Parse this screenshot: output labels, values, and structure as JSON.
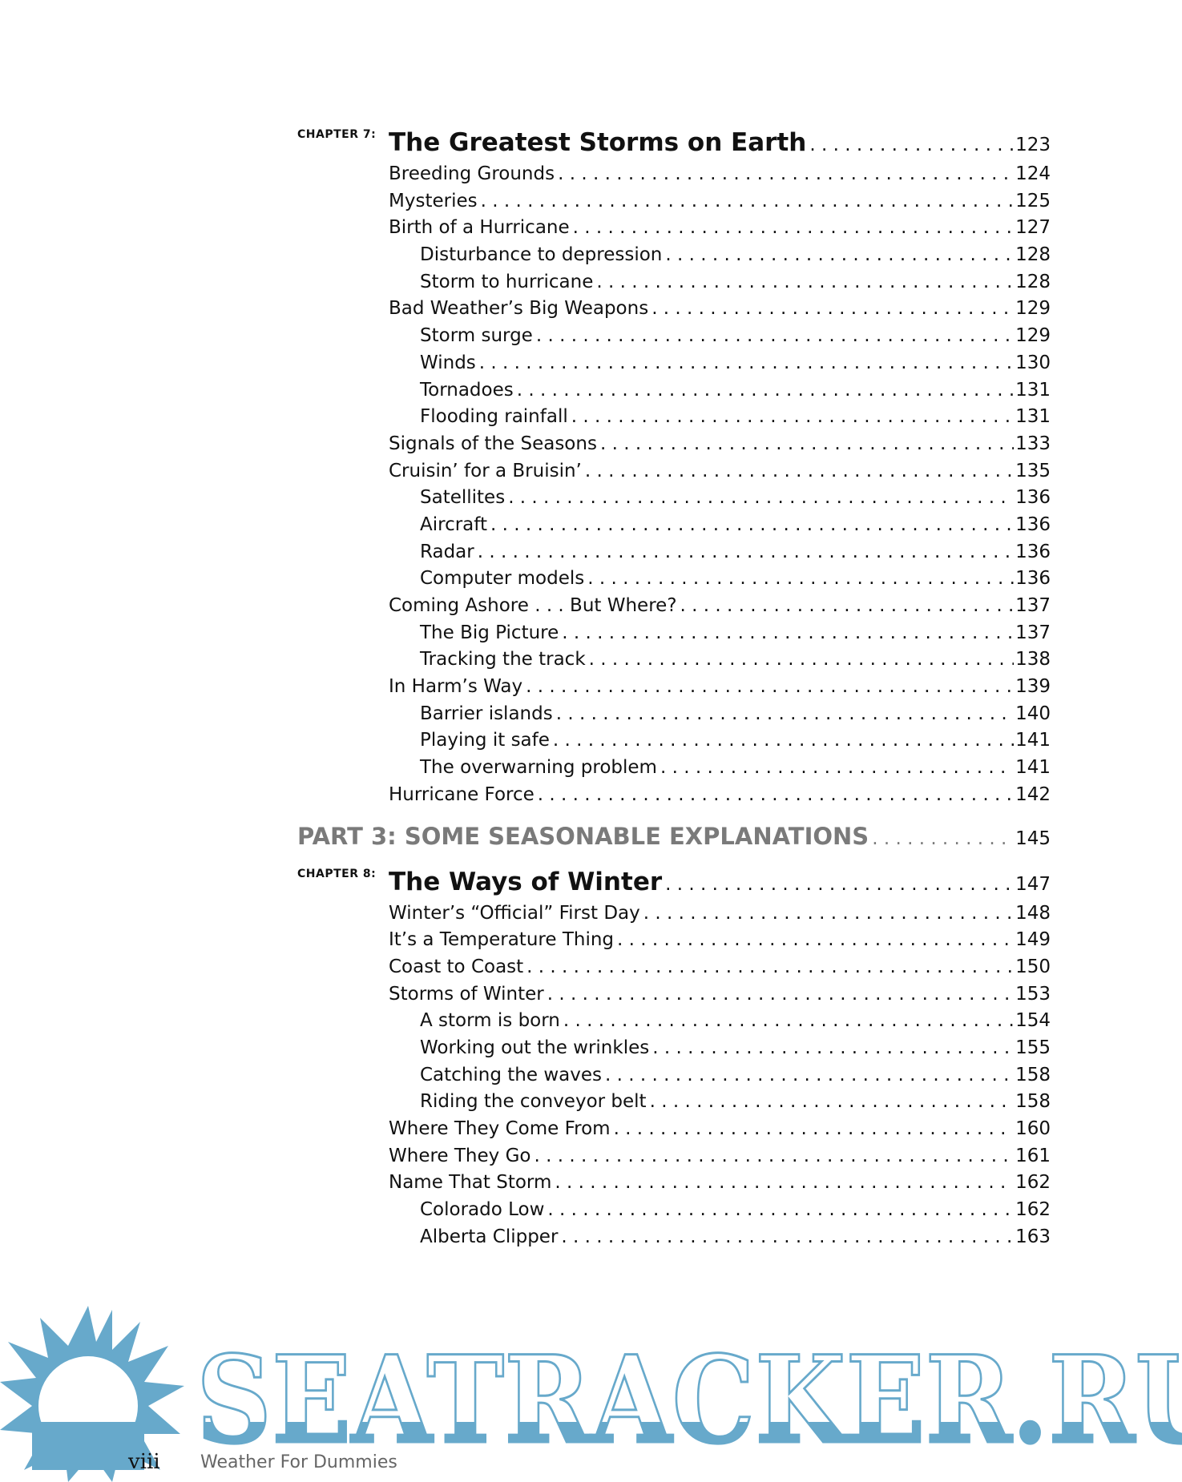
{
  "chapters_before": {
    "label": "CHAPTER 7:",
    "title": "The Greatest Storms on Earth",
    "page": "123",
    "entries": [
      {
        "text": "Breeding Grounds",
        "page": "124",
        "level": 1
      },
      {
        "text": "Mysteries",
        "page": "125",
        "level": 1
      },
      {
        "text": "Birth of a Hurricane",
        "page": "127",
        "level": 1
      },
      {
        "text": "Disturbance to depression",
        "page": "128",
        "level": 2
      },
      {
        "text": "Storm to hurricane",
        "page": "128",
        "level": 2
      },
      {
        "text": "Bad Weather’s Big Weapons",
        "page": "129",
        "level": 1
      },
      {
        "text": "Storm surge",
        "page": "129",
        "level": 2
      },
      {
        "text": "Winds",
        "page": "130",
        "level": 2
      },
      {
        "text": "Tornadoes",
        "page": "131",
        "level": 2
      },
      {
        "text": "Flooding rainfall",
        "page": "131",
        "level": 2
      },
      {
        "text": "Signals of the Seasons",
        "page": "133",
        "level": 1
      },
      {
        "text": "Cruisin’ for a Bruisin’",
        "page": "135",
        "level": 1
      },
      {
        "text": "Satellites",
        "page": "136",
        "level": 2
      },
      {
        "text": "Aircraft",
        "page": "136",
        "level": 2
      },
      {
        "text": "Radar",
        "page": "136",
        "level": 2
      },
      {
        "text": "Computer models",
        "page": "136",
        "level": 2
      },
      {
        "text": "Coming Ashore . . . But Where?",
        "page": "137",
        "level": 1
      },
      {
        "text": "The Big Picture",
        "page": "137",
        "level": 2
      },
      {
        "text": "Tracking the track",
        "page": "138",
        "level": 2
      },
      {
        "text": "In Harm’s Way",
        "page": "139",
        "level": 1
      },
      {
        "text": "Barrier islands",
        "page": "140",
        "level": 2
      },
      {
        "text": "Playing it safe",
        "page": "141",
        "level": 2
      },
      {
        "text": "The overwarning problem",
        "page": "141",
        "level": 2
      },
      {
        "text": "Hurricane Force",
        "page": "142",
        "level": 1
      }
    ]
  },
  "part": {
    "title": "PART 3: SOME SEASONABLE EXPLANATIONS",
    "page": "145"
  },
  "chapter8": {
    "label": "CHAPTER 8:",
    "title": "The Ways of Winter",
    "page": "147",
    "entries": [
      {
        "text": "Winter’s “Official” First Day",
        "page": "148",
        "level": 1
      },
      {
        "text": "It’s a Temperature Thing",
        "page": "149",
        "level": 1
      },
      {
        "text": "Coast to Coast",
        "page": "150",
        "level": 1
      },
      {
        "text": "Storms of Winter",
        "page": "153",
        "level": 1
      },
      {
        "text": "A storm is born",
        "page": "154",
        "level": 2
      },
      {
        "text": "Working out the wrinkles",
        "page": "155",
        "level": 2
      },
      {
        "text": "Catching the waves",
        "page": "158",
        "level": 2
      },
      {
        "text": "Riding the conveyor belt",
        "page": "158",
        "level": 2
      },
      {
        "text": "Where They Come From",
        "page": "160",
        "level": 1
      },
      {
        "text": "Where They Go",
        "page": "161",
        "level": 1
      },
      {
        "text": "Name That Storm",
        "page": "162",
        "level": 1
      },
      {
        "text": "Colorado Low",
        "page": "162",
        "level": 2
      },
      {
        "text": "Alberta Clipper",
        "page": "163",
        "level": 2
      }
    ]
  },
  "footer": {
    "page_number": "viii",
    "book_title": "Weather For Dummies"
  },
  "watermark": {
    "text": "SEATRACKER.RU",
    "color": "#67a9cb"
  }
}
